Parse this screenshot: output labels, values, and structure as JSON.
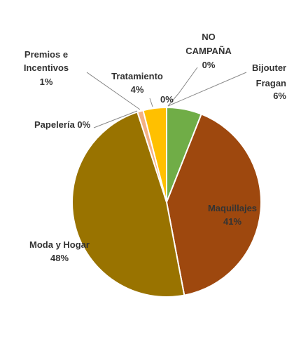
{
  "chart_data": {
    "type": "pie",
    "title": "",
    "legend": "none",
    "slices": [
      {
        "name": "Bijouter",
        "value": 0,
        "label": "0%",
        "color": "#4472C4"
      },
      {
        "name": "Fragan",
        "value": 6,
        "label": "6%",
        "color": "#70AD47"
      },
      {
        "name": "Maquillajes",
        "value": 41,
        "label": "41%",
        "color": "#9E480E"
      },
      {
        "name": "Moda y Hogar",
        "value": 48,
        "label": "48%",
        "color": "#997300"
      },
      {
        "name": "Papelería",
        "value": 0,
        "label": "0%",
        "color": "#264478"
      },
      {
        "name": "Premios e Incentivos",
        "value": 1,
        "label": "1%",
        "color": "#F4B183"
      },
      {
        "name": "Tratamiento",
        "value": 4,
        "label": "4%",
        "color": "#FFC000"
      },
      {
        "name": "NO CAMPAÑA",
        "value": 0,
        "label": "0%",
        "color": "#A5A5A5"
      }
    ]
  },
  "labels": {
    "no_campana_line1": "NO",
    "no_campana_line2": "CAMPAÑA",
    "no_campana_pct": "0%",
    "bijouter": "Bijouter",
    "bijouter_pct": "0%",
    "fragan": "Fragan",
    "fragan_pct": "6%",
    "maquillajes": "Maquillajes",
    "maquillajes_pct": "41%",
    "moda_hogar": "Moda y Hogar",
    "moda_hogar_pct": "48%",
    "papeleria": "Papelería 0%",
    "premios_line1": "Premios e",
    "premios_line2": "Incentivos",
    "premios_pct": "1%",
    "tratamiento": "Tratamiento",
    "tratamiento_pct": "4%"
  }
}
